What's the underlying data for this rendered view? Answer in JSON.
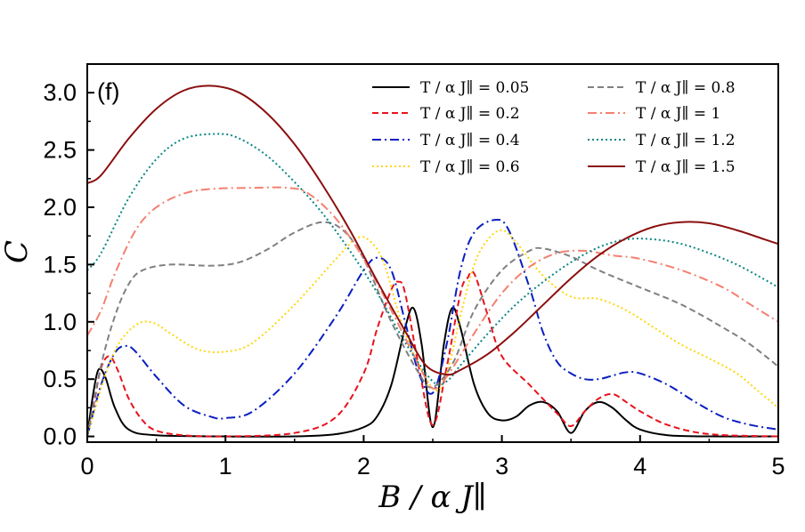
{
  "chart_data": {
    "type": "line",
    "panel_label": "(f)",
    "title": "",
    "xlabel": "B / α J∥",
    "ylabel": "C",
    "xlim": [
      0,
      5
    ],
    "ylim": [
      -0.05,
      3.25
    ],
    "xticks": [
      0,
      1,
      2,
      3,
      4,
      5
    ],
    "xtick_labels": [
      "0",
      "1",
      "2",
      "3",
      "4",
      "5"
    ],
    "yticks": [
      0.0,
      0.5,
      1.0,
      1.5,
      2.0,
      2.5,
      3.0
    ],
    "ytick_labels": [
      "0.0",
      "0.5",
      "1.0",
      "1.5",
      "2.0",
      "2.5",
      "3.0"
    ],
    "grid": false,
    "legend_position": "top-right",
    "series": [
      {
        "name": "T / α J∥ = 0.05",
        "color": "#000000",
        "dash": "solid",
        "points": [
          [
            0,
            0
          ],
          [
            0.04,
            0.35
          ],
          [
            0.08,
            0.58
          ],
          [
            0.13,
            0.52
          ],
          [
            0.2,
            0.25
          ],
          [
            0.3,
            0.06
          ],
          [
            0.5,
            0.01
          ],
          [
            1.0,
            0.0
          ],
          [
            1.5,
            0.0
          ],
          [
            1.8,
            0.02
          ],
          [
            2.0,
            0.08
          ],
          [
            2.1,
            0.18
          ],
          [
            2.2,
            0.45
          ],
          [
            2.3,
            0.95
          ],
          [
            2.36,
            1.12
          ],
          [
            2.42,
            0.8
          ],
          [
            2.5,
            0.08
          ],
          [
            2.58,
            0.8
          ],
          [
            2.64,
            1.12
          ],
          [
            2.7,
            0.95
          ],
          [
            2.8,
            0.45
          ],
          [
            2.9,
            0.2
          ],
          [
            3.0,
            0.14
          ],
          [
            3.1,
            0.17
          ],
          [
            3.2,
            0.27
          ],
          [
            3.3,
            0.3
          ],
          [
            3.4,
            0.22
          ],
          [
            3.5,
            0.03
          ],
          [
            3.6,
            0.22
          ],
          [
            3.7,
            0.3
          ],
          [
            3.8,
            0.25
          ],
          [
            3.9,
            0.14
          ],
          [
            4.0,
            0.06
          ],
          [
            4.2,
            0.01
          ],
          [
            4.5,
            0.0
          ],
          [
            5.0,
            0.0
          ]
        ]
      },
      {
        "name": "T / α J∥ = 0.2",
        "color": "#e8121d",
        "dash": "dashed",
        "points": [
          [
            0,
            0
          ],
          [
            0.05,
            0.3
          ],
          [
            0.1,
            0.6
          ],
          [
            0.16,
            0.7
          ],
          [
            0.22,
            0.58
          ],
          [
            0.3,
            0.33
          ],
          [
            0.4,
            0.14
          ],
          [
            0.5,
            0.05
          ],
          [
            0.7,
            0.01
          ],
          [
            1.0,
            0.0
          ],
          [
            1.5,
            0.03
          ],
          [
            1.8,
            0.17
          ],
          [
            2.0,
            0.55
          ],
          [
            2.1,
            0.95
          ],
          [
            2.2,
            1.28
          ],
          [
            2.25,
            1.35
          ],
          [
            2.3,
            1.25
          ],
          [
            2.4,
            0.6
          ],
          [
            2.5,
            0.1
          ],
          [
            2.6,
            0.6
          ],
          [
            2.7,
            1.25
          ],
          [
            2.75,
            1.38
          ],
          [
            2.8,
            1.42
          ],
          [
            2.9,
            1.05
          ],
          [
            3.0,
            0.7
          ],
          [
            3.2,
            0.45
          ],
          [
            3.4,
            0.2
          ],
          [
            3.5,
            0.09
          ],
          [
            3.6,
            0.22
          ],
          [
            3.7,
            0.33
          ],
          [
            3.8,
            0.37
          ],
          [
            3.9,
            0.3
          ],
          [
            4.0,
            0.22
          ],
          [
            4.2,
            0.1
          ],
          [
            4.5,
            0.02
          ],
          [
            5.0,
            0.0
          ]
        ]
      },
      {
        "name": "T / α J∥ = 0.4",
        "color": "#0a1fbf",
        "dash": "dashdot",
        "points": [
          [
            0,
            0
          ],
          [
            0.1,
            0.45
          ],
          [
            0.2,
            0.73
          ],
          [
            0.28,
            0.79
          ],
          [
            0.35,
            0.74
          ],
          [
            0.5,
            0.52
          ],
          [
            0.7,
            0.27
          ],
          [
            0.9,
            0.17
          ],
          [
            1.0,
            0.16
          ],
          [
            1.2,
            0.22
          ],
          [
            1.5,
            0.55
          ],
          [
            1.8,
            1.05
          ],
          [
            2.0,
            1.45
          ],
          [
            2.1,
            1.56
          ],
          [
            2.2,
            1.45
          ],
          [
            2.3,
            1.0
          ],
          [
            2.4,
            0.55
          ],
          [
            2.5,
            0.38
          ],
          [
            2.6,
            0.8
          ],
          [
            2.7,
            1.45
          ],
          [
            2.8,
            1.78
          ],
          [
            2.95,
            1.89
          ],
          [
            3.05,
            1.8
          ],
          [
            3.2,
            1.3
          ],
          [
            3.3,
            0.9
          ],
          [
            3.4,
            0.65
          ],
          [
            3.5,
            0.55
          ],
          [
            3.6,
            0.5
          ],
          [
            3.7,
            0.5
          ],
          [
            3.8,
            0.53
          ],
          [
            3.9,
            0.56
          ],
          [
            4.0,
            0.55
          ],
          [
            4.2,
            0.45
          ],
          [
            4.4,
            0.3
          ],
          [
            4.6,
            0.17
          ],
          [
            4.8,
            0.1
          ],
          [
            5.0,
            0.06
          ]
        ]
      },
      {
        "name": "T / α J∥ = 0.6",
        "color": "#ffd60a",
        "dash": "dotted",
        "points": [
          [
            0,
            0
          ],
          [
            0.1,
            0.42
          ],
          [
            0.2,
            0.75
          ],
          [
            0.3,
            0.92
          ],
          [
            0.4,
            1.0
          ],
          [
            0.5,
            0.98
          ],
          [
            0.6,
            0.9
          ],
          [
            0.8,
            0.76
          ],
          [
            1.0,
            0.74
          ],
          [
            1.2,
            0.82
          ],
          [
            1.5,
            1.15
          ],
          [
            1.8,
            1.55
          ],
          [
            1.95,
            1.73
          ],
          [
            2.05,
            1.7
          ],
          [
            2.15,
            1.5
          ],
          [
            2.3,
            0.9
          ],
          [
            2.5,
            0.42
          ],
          [
            2.6,
            0.55
          ],
          [
            2.7,
            1.05
          ],
          [
            2.8,
            1.5
          ],
          [
            2.9,
            1.72
          ],
          [
            3.0,
            1.8
          ],
          [
            3.1,
            1.7
          ],
          [
            3.3,
            1.4
          ],
          [
            3.5,
            1.22
          ],
          [
            3.7,
            1.2
          ],
          [
            3.9,
            1.1
          ],
          [
            4.1,
            0.95
          ],
          [
            4.3,
            0.8
          ],
          [
            4.5,
            0.68
          ],
          [
            4.7,
            0.55
          ],
          [
            4.85,
            0.4
          ],
          [
            5.0,
            0.25
          ]
        ]
      },
      {
        "name": "T / α J∥ = 0.8",
        "color": "#808080",
        "dash": "dashed",
        "points": [
          [
            0,
            0
          ],
          [
            0.1,
            0.62
          ],
          [
            0.2,
            1.05
          ],
          [
            0.3,
            1.33
          ],
          [
            0.4,
            1.45
          ],
          [
            0.6,
            1.5
          ],
          [
            0.9,
            1.49
          ],
          [
            1.1,
            1.52
          ],
          [
            1.3,
            1.63
          ],
          [
            1.5,
            1.78
          ],
          [
            1.7,
            1.87
          ],
          [
            1.85,
            1.8
          ],
          [
            2.0,
            1.55
          ],
          [
            2.2,
            1.0
          ],
          [
            2.4,
            0.55
          ],
          [
            2.5,
            0.43
          ],
          [
            2.65,
            0.65
          ],
          [
            2.8,
            1.1
          ],
          [
            3.0,
            1.45
          ],
          [
            3.2,
            1.62
          ],
          [
            3.3,
            1.64
          ],
          [
            3.5,
            1.57
          ],
          [
            3.7,
            1.45
          ],
          [
            4.0,
            1.3
          ],
          [
            4.3,
            1.15
          ],
          [
            4.6,
            0.95
          ],
          [
            4.8,
            0.8
          ],
          [
            5.0,
            0.61
          ]
        ]
      },
      {
        "name": "T / α J∥ = 1",
        "color": "#f4806f",
        "dash": "dashdot",
        "points": [
          [
            0,
            0.88
          ],
          [
            0.1,
            1.1
          ],
          [
            0.2,
            1.42
          ],
          [
            0.35,
            1.8
          ],
          [
            0.5,
            2.0
          ],
          [
            0.7,
            2.12
          ],
          [
            0.9,
            2.16
          ],
          [
            1.2,
            2.17
          ],
          [
            1.45,
            2.17
          ],
          [
            1.6,
            2.12
          ],
          [
            1.8,
            1.9
          ],
          [
            2.0,
            1.55
          ],
          [
            2.2,
            1.1
          ],
          [
            2.4,
            0.62
          ],
          [
            2.5,
            0.42
          ],
          [
            2.6,
            0.52
          ],
          [
            2.8,
            0.9
          ],
          [
            3.0,
            1.25
          ],
          [
            3.2,
            1.48
          ],
          [
            3.4,
            1.6
          ],
          [
            3.6,
            1.62
          ],
          [
            3.8,
            1.58
          ],
          [
            4.0,
            1.55
          ],
          [
            4.3,
            1.45
          ],
          [
            4.6,
            1.3
          ],
          [
            4.8,
            1.15
          ],
          [
            5.0,
            1.0
          ]
        ]
      },
      {
        "name": "T / α J∥ = 1.2",
        "color": "#0b8585",
        "dash": "dotted",
        "points": [
          [
            0,
            1.45
          ],
          [
            0.1,
            1.6
          ],
          [
            0.3,
            2.08
          ],
          [
            0.5,
            2.42
          ],
          [
            0.7,
            2.6
          ],
          [
            0.95,
            2.64
          ],
          [
            1.1,
            2.6
          ],
          [
            1.3,
            2.45
          ],
          [
            1.5,
            2.22
          ],
          [
            1.7,
            1.95
          ],
          [
            1.9,
            1.62
          ],
          [
            2.1,
            1.25
          ],
          [
            2.3,
            0.82
          ],
          [
            2.5,
            0.48
          ],
          [
            2.6,
            0.48
          ],
          [
            2.7,
            0.62
          ],
          [
            2.9,
            0.9
          ],
          [
            3.1,
            1.15
          ],
          [
            3.3,
            1.35
          ],
          [
            3.5,
            1.52
          ],
          [
            3.7,
            1.65
          ],
          [
            3.9,
            1.72
          ],
          [
            4.1,
            1.72
          ],
          [
            4.3,
            1.68
          ],
          [
            4.5,
            1.6
          ],
          [
            4.7,
            1.5
          ],
          [
            4.9,
            1.37
          ],
          [
            5.0,
            1.3
          ]
        ]
      },
      {
        "name": "T / α J∥ = 1.5",
        "color": "#8b0f0f",
        "dash": "solid",
        "points": [
          [
            0,
            2.21
          ],
          [
            0.1,
            2.28
          ],
          [
            0.3,
            2.6
          ],
          [
            0.5,
            2.86
          ],
          [
            0.7,
            3.02
          ],
          [
            0.9,
            3.06
          ],
          [
            1.1,
            3.0
          ],
          [
            1.3,
            2.82
          ],
          [
            1.5,
            2.55
          ],
          [
            1.7,
            2.2
          ],
          [
            1.9,
            1.8
          ],
          [
            2.1,
            1.35
          ],
          [
            2.3,
            0.92
          ],
          [
            2.45,
            0.62
          ],
          [
            2.6,
            0.54
          ],
          [
            2.7,
            0.58
          ],
          [
            2.9,
            0.72
          ],
          [
            3.1,
            0.92
          ],
          [
            3.3,
            1.15
          ],
          [
            3.5,
            1.38
          ],
          [
            3.7,
            1.58
          ],
          [
            3.9,
            1.73
          ],
          [
            4.1,
            1.83
          ],
          [
            4.3,
            1.87
          ],
          [
            4.5,
            1.86
          ],
          [
            4.7,
            1.8
          ],
          [
            4.9,
            1.72
          ],
          [
            5.0,
            1.68
          ]
        ]
      }
    ],
    "legend_entries": [
      {
        "series": 0,
        "label": "T / α J∥  =  0.05"
      },
      {
        "series": 1,
        "label": "T / α J∥  =  0.2"
      },
      {
        "series": 2,
        "label": "T / α J∥  =  0.4"
      },
      {
        "series": 3,
        "label": "T / α J∥  =  0.6"
      },
      {
        "series": 4,
        "label": "T / α J∥  =  0.8"
      },
      {
        "series": 5,
        "label": "T / α J∥  =  1"
      },
      {
        "series": 6,
        "label": "T / α J∥  =  1.2"
      },
      {
        "series": 7,
        "label": "T / α J∥  =  1.5"
      }
    ]
  }
}
